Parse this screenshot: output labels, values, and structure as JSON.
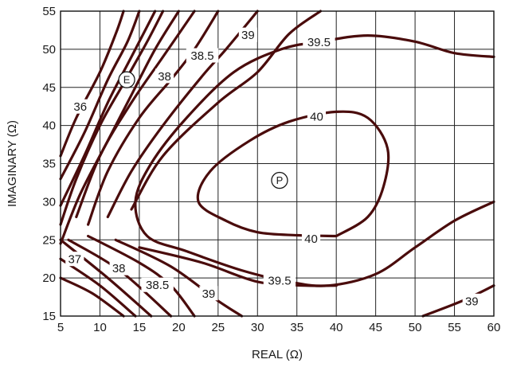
{
  "chart_data": {
    "type": "contour",
    "xlabel": "REAL (Ω)",
    "ylabel": "IMAGINARY (Ω)",
    "xlim": [
      5,
      60
    ],
    "ylim": [
      15,
      55
    ],
    "xticks": [
      5,
      10,
      15,
      20,
      25,
      30,
      35,
      40,
      45,
      50,
      55,
      60
    ],
    "yticks": [
      15,
      20,
      25,
      30,
      35,
      40,
      45,
      50,
      55
    ],
    "grid": true,
    "line_color": "#4a0c0c",
    "contours": [
      {
        "level": "unlabeled",
        "points": [
          [
            5,
            36
          ],
          [
            7,
            41
          ],
          [
            10,
            47
          ],
          [
            12,
            52
          ],
          [
            13,
            55
          ]
        ]
      },
      {
        "level": "unlabeled",
        "points": [
          [
            5,
            33
          ],
          [
            8,
            39
          ],
          [
            11,
            46
          ],
          [
            13.5,
            51
          ],
          [
            15,
            55
          ]
        ]
      },
      {
        "level": "unlabeled",
        "points": [
          [
            5,
            29.5
          ],
          [
            8,
            36
          ],
          [
            11,
            43
          ],
          [
            14,
            49
          ],
          [
            17,
            55
          ]
        ]
      },
      {
        "level": "36",
        "points": [
          [
            5,
            27
          ],
          [
            7,
            33
          ],
          [
            10,
            40
          ],
          [
            13,
            45.5
          ],
          [
            16,
            51
          ],
          [
            18,
            55
          ]
        ]
      },
      {
        "level": "unlabeled",
        "points": [
          [
            5,
            24.5
          ],
          [
            7.5,
            31
          ],
          [
            11,
            38
          ],
          [
            14,
            44
          ],
          [
            17,
            50
          ],
          [
            20,
            55
          ]
        ]
      },
      {
        "level": "unlabeled",
        "points": [
          [
            7,
            28
          ],
          [
            10,
            36
          ],
          [
            14,
            43
          ],
          [
            18,
            49
          ],
          [
            22,
            55
          ]
        ]
      },
      {
        "level": "38",
        "points": [
          [
            8.5,
            27
          ],
          [
            11,
            34
          ],
          [
            15,
            41
          ],
          [
            19,
            46
          ],
          [
            22,
            50
          ],
          [
            25,
            55
          ]
        ]
      },
      {
        "level": "38.5",
        "points": [
          [
            11,
            28
          ],
          [
            14,
            34
          ],
          [
            18,
            40
          ],
          [
            23,
            46.5
          ],
          [
            26,
            50
          ],
          [
            30,
            55
          ]
        ]
      },
      {
        "level": "39",
        "points": [
          [
            14,
            29
          ],
          [
            18,
            36
          ],
          [
            25,
            43
          ],
          [
            30,
            47
          ],
          [
            34,
            52
          ],
          [
            38,
            55
          ]
        ]
      },
      {
        "level": "39.5",
        "points": [
          [
            60,
            49
          ],
          [
            55,
            49.5
          ],
          [
            50,
            51
          ],
          [
            44,
            51.8
          ],
          [
            38,
            51
          ],
          [
            33,
            50
          ],
          [
            27,
            47
          ],
          [
            21,
            41
          ],
          [
            16.5,
            35
          ],
          [
            14.5,
            30
          ],
          [
            16,
            25.5
          ],
          [
            21,
            23.5
          ],
          [
            28,
            21
          ],
          [
            34,
            19.5
          ],
          [
            39,
            19
          ],
          [
            45,
            20.5
          ],
          [
            50,
            24
          ],
          [
            55,
            27.5
          ],
          [
            60,
            30
          ]
        ]
      },
      {
        "level": "40",
        "points": [
          [
            40,
            25.5
          ],
          [
            35,
            25.6
          ],
          [
            30,
            26
          ],
          [
            26,
            27.5
          ],
          [
            22.5,
            30
          ],
          [
            24,
            34
          ],
          [
            29,
            38
          ],
          [
            34,
            40.5
          ],
          [
            40,
            41.8
          ],
          [
            44,
            41
          ],
          [
            46.5,
            37
          ],
          [
            46,
            32
          ],
          [
            44,
            28
          ],
          [
            40,
            25.5
          ]
        ]
      },
      {
        "level": "39.5",
        "points": [
          [
            5,
            20
          ],
          [
            9,
            18
          ],
          [
            13,
            15
          ]
        ]
      },
      {
        "level": "37",
        "points": [
          [
            5,
            22.5
          ],
          [
            10,
            19
          ],
          [
            14.5,
            15
          ]
        ]
      },
      {
        "level": "unlabeled",
        "points": [
          [
            5,
            25
          ],
          [
            11,
            20
          ],
          [
            16.5,
            15
          ]
        ]
      },
      {
        "level": "38",
        "points": [
          [
            6,
            25
          ],
          [
            12.5,
            21
          ],
          [
            19,
            15
          ]
        ]
      },
      {
        "level": "38.5",
        "points": [
          [
            8.5,
            25.5
          ],
          [
            15,
            22
          ],
          [
            19,
            19
          ],
          [
            22,
            15
          ]
        ]
      },
      {
        "level": "39",
        "points": [
          [
            12,
            25
          ],
          [
            19,
            21.5
          ],
          [
            25,
            17
          ],
          [
            28,
            15
          ]
        ]
      },
      {
        "level": "39.5",
        "points": [
          [
            15,
            24
          ],
          [
            23,
            22
          ],
          [
            30,
            19.5
          ],
          [
            36,
            19
          ],
          [
            40,
            19
          ]
        ]
      },
      {
        "level": "39",
        "points": [
          [
            51,
            15
          ],
          [
            56,
            17
          ],
          [
            60,
            19
          ]
        ]
      }
    ],
    "contour_labels": [
      {
        "text": "36",
        "x": 7.5,
        "y": 42.5
      },
      {
        "text": "37",
        "x": 6.8,
        "y": 22.5
      },
      {
        "text": "38",
        "x": 18.2,
        "y": 46.5
      },
      {
        "text": "38",
        "x": 12.4,
        "y": 21.3
      },
      {
        "text": "38.5",
        "x": 23.0,
        "y": 49.2
      },
      {
        "text": "38.5",
        "x": 17.3,
        "y": 19.1
      },
      {
        "text": "39",
        "x": 28.8,
        "y": 51.9
      },
      {
        "text": "39",
        "x": 23.8,
        "y": 18.0
      },
      {
        "text": "39",
        "x": 57.2,
        "y": 17.0
      },
      {
        "text": "39.5",
        "x": 37.8,
        "y": 51.0
      },
      {
        "text": "39.5",
        "x": 32.8,
        "y": 19.7
      },
      {
        "text": "40",
        "x": 37.5,
        "y": 41.2
      },
      {
        "text": "40",
        "x": 36.8,
        "y": 25.2
      }
    ],
    "markers": [
      {
        "text": "E",
        "x": 13.4,
        "y": 46.0
      },
      {
        "text": "P",
        "x": 32.8,
        "y": 32.8
      }
    ]
  }
}
